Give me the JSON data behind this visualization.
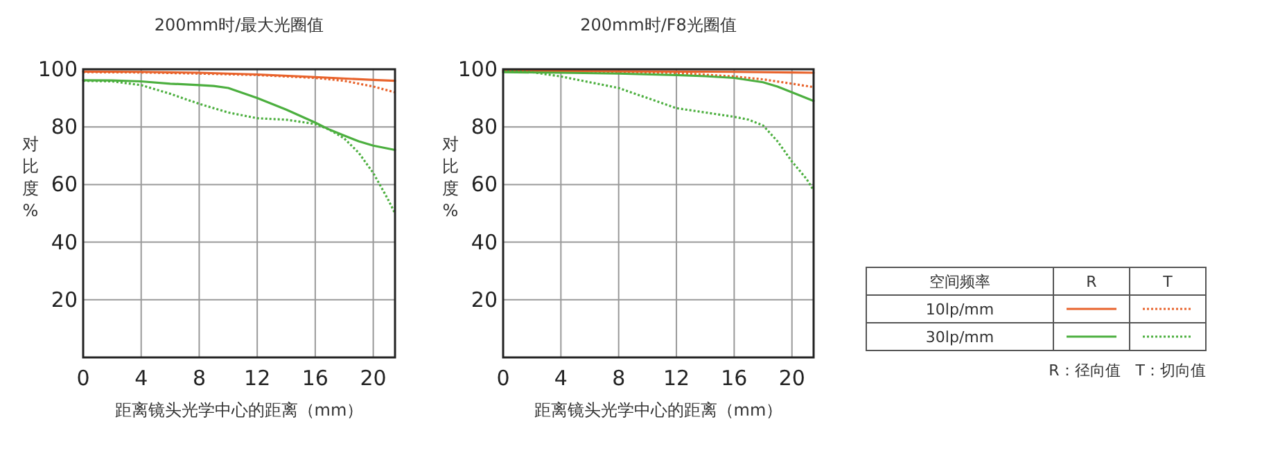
{
  "chart_data": [
    {
      "type": "line",
      "title": "200mm时/最大光圈值",
      "xlabel": "距离镜头光学中心的距离（mm）",
      "ylabel": "对比度%",
      "xlim": [
        0,
        21.5
      ],
      "ylim": [
        0,
        100
      ],
      "xticks": [
        0,
        4,
        8,
        12,
        16,
        20
      ],
      "yticks": [
        {
          "value": 0,
          "label": null
        },
        20,
        40,
        60,
        80,
        100
      ],
      "grid": true,
      "legend": false,
      "series": [
        {
          "color": "#e8632c",
          "line_style": "solid",
          "x": [
            0,
            4,
            8,
            12,
            16,
            20,
            21.5
          ],
          "values": [
            99.2,
            99.1,
            98.8,
            98.2,
            97.3,
            96.3,
            96
          ]
        },
        {
          "color": "#e8632c",
          "line_style": "dotted",
          "x": [
            0,
            4,
            8,
            12,
            16,
            18,
            20,
            21.5
          ],
          "values": [
            99,
            98.9,
            98.5,
            98,
            97,
            96,
            94,
            92
          ]
        },
        {
          "color": "#4caf3f",
          "line_style": "solid",
          "x": [
            0,
            2,
            4,
            6,
            8,
            9,
            10,
            12,
            14,
            16,
            17,
            18,
            19,
            20,
            21.5
          ],
          "values": [
            96.2,
            96.1,
            95.8,
            95,
            94.5,
            94.2,
            93.5,
            90,
            86,
            81.5,
            79,
            77,
            75,
            73.5,
            72
          ]
        },
        {
          "color": "#4caf3f",
          "line_style": "dotted",
          "x": [
            0,
            2,
            4,
            6,
            8,
            10,
            12,
            14,
            16,
            17,
            18,
            19,
            20,
            21,
            21.5
          ],
          "values": [
            96,
            95.8,
            94.5,
            91.5,
            88,
            85,
            83,
            82.5,
            81,
            79,
            76,
            71,
            64,
            55,
            50
          ]
        }
      ]
    },
    {
      "type": "line",
      "title": "200mm时/F8光圈值",
      "xlabel": "距离镜头光学中心的距离（mm）",
      "ylabel": "对比度%",
      "xlim": [
        0,
        21.5
      ],
      "ylim": [
        0,
        100
      ],
      "xticks": [
        0,
        4,
        8,
        12,
        16,
        20
      ],
      "yticks": [
        {
          "value": 0,
          "label": null
        },
        20,
        40,
        60,
        80,
        100
      ],
      "grid": true,
      "legend": "right",
      "legend_title": "空间频率",
      "annotations": [
        "R",
        "T",
        "R：径向值　T：切向值"
      ],
      "series": [
        {
          "name": "10lp/mm",
          "color": "#e8632c",
          "line_style": "solid",
          "x": [
            0,
            4,
            8,
            12,
            16,
            20,
            21.5
          ],
          "values": [
            99.5,
            99.4,
            99.3,
            99.2,
            99.1,
            98.9,
            98.8
          ]
        },
        {
          "color": "#e8632c",
          "line_style": "dotted",
          "x": [
            0,
            4,
            8,
            12,
            16,
            18,
            20,
            21.5
          ],
          "values": [
            99.5,
            99.3,
            99.1,
            98.7,
            97.5,
            96.5,
            95,
            93.8
          ]
        },
        {
          "name": "30lp/mm",
          "color": "#4caf3f",
          "line_style": "solid",
          "x": [
            0,
            4,
            8,
            12,
            14,
            16,
            18,
            19,
            20,
            21.5
          ],
          "values": [
            99,
            98.8,
            98.5,
            98,
            97.6,
            97,
            95.5,
            94,
            92,
            89
          ]
        },
        {
          "color": "#4caf3f",
          "line_style": "dotted",
          "x": [
            0,
            2,
            4,
            6,
            8,
            10,
            12,
            14,
            16,
            17,
            18,
            19,
            20,
            21,
            21.5
          ],
          "values": [
            99.5,
            99,
            97.5,
            95.5,
            93.5,
            90,
            86.5,
            85,
            83.5,
            82.5,
            80.5,
            75,
            68,
            62,
            58
          ]
        }
      ]
    }
  ]
}
